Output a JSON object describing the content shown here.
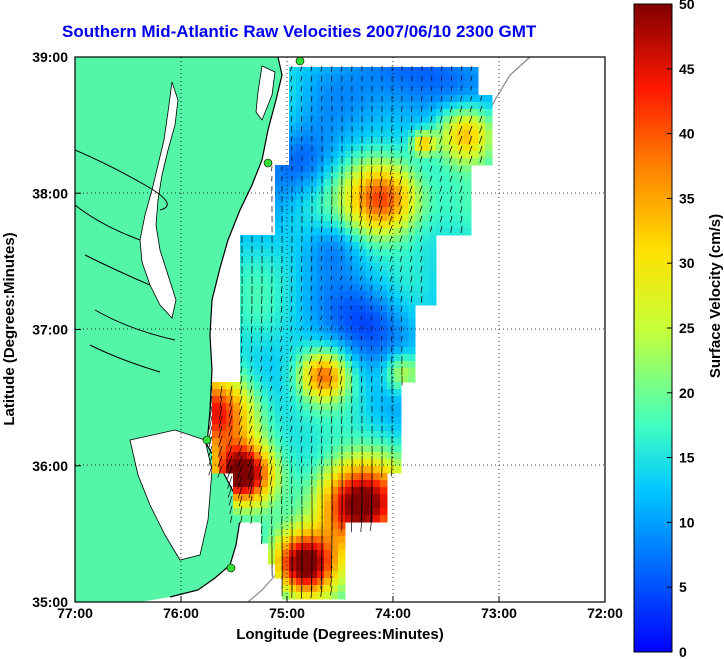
{
  "title": "Southern Mid-Atlantic Raw Velocities 2007/06/10 2300 GMT",
  "xlabel": "Longitude (Degrees:Minutes)",
  "ylabel": "Latitude (Degrees:Minutes)",
  "x_ticks": [
    "77:00",
    "76:00",
    "75:00",
    "74:00",
    "73:00",
    "72:00"
  ],
  "y_ticks": [
    "39:00",
    "38:00",
    "37:00",
    "36:00",
    "35:00"
  ],
  "colorbar": {
    "label": "Surface Velocity (cm/s)",
    "ticks": [
      "50",
      "45",
      "40",
      "35",
      "30",
      "25",
      "20",
      "15",
      "10",
      "5",
      "0"
    ],
    "min": 0,
    "max": 50
  },
  "colors": {
    "land": "#55f5a8",
    "title": "#0000ee",
    "station": "#33dd33"
  },
  "grid": "dotted",
  "chart_data": {
    "type": "heatmap",
    "title": "Southern Mid-Atlantic Raw Velocities 2007/06/10 2300 GMT",
    "xlabel": "Longitude (Degrees:Minutes)",
    "ylabel": "Latitude (Degrees:Minutes)",
    "xlim": [
      "77:00",
      "72:00"
    ],
    "ylim": [
      "35:00",
      "39:00"
    ],
    "value_range": [
      0,
      50
    ],
    "value_label": "Surface Velocity (cm/s)"
  }
}
